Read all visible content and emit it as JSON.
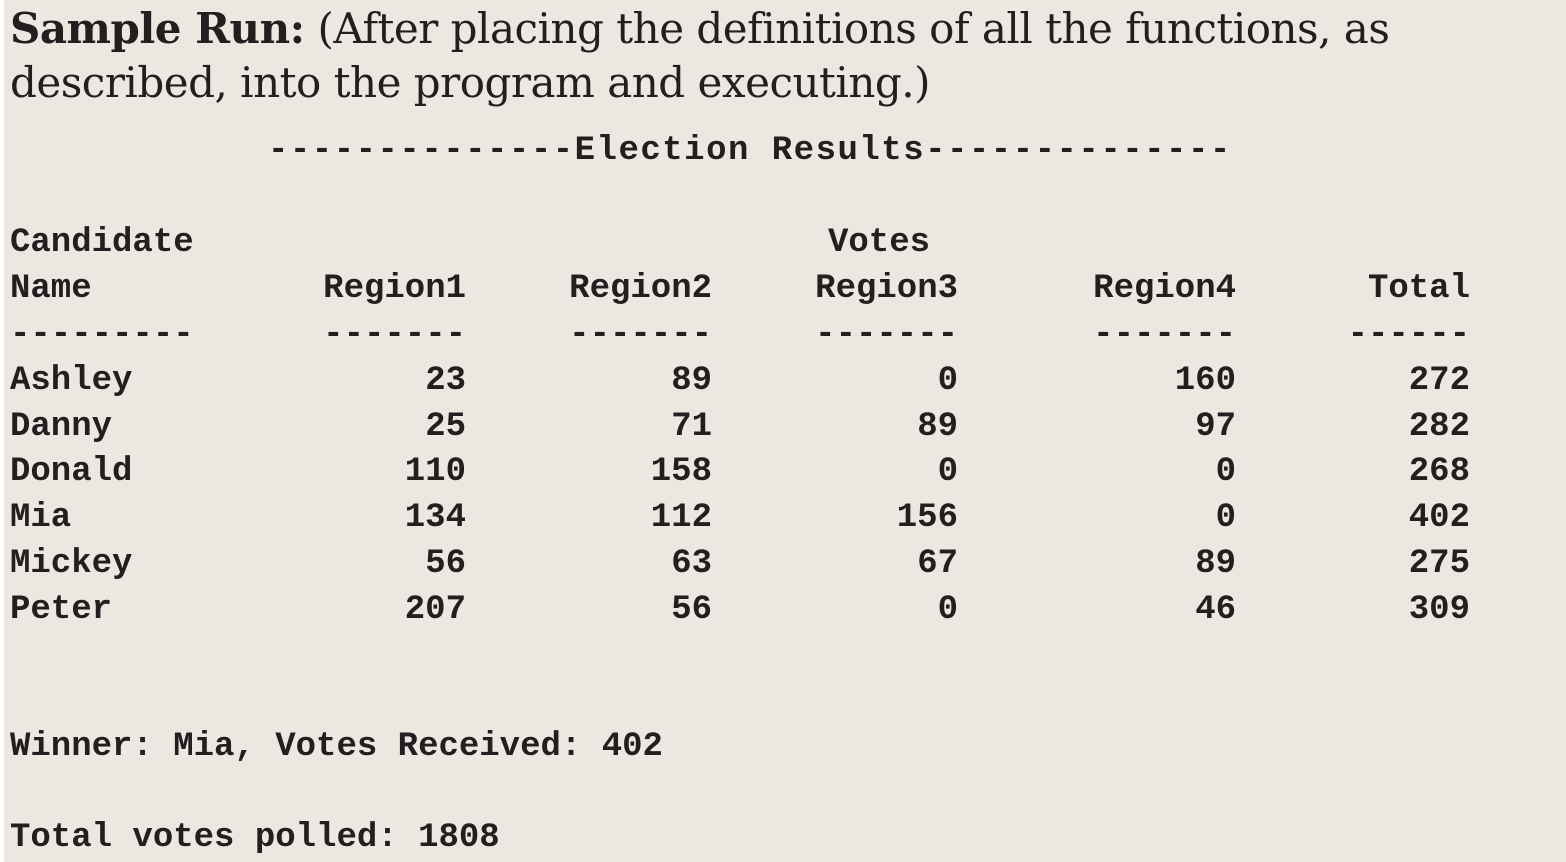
{
  "intro": {
    "lead": "Sample Run:",
    "text": " (After placing the definitions of all the functions, as described, into the program and executing.)"
  },
  "output": {
    "title_line": "--------------Election Results--------------",
    "header_row1_candidate": "Candidate",
    "header_row1_votes": "Votes",
    "headers": [
      "Name",
      "Region1",
      "Region2",
      "Region3",
      "Region4",
      "Total"
    ],
    "dividers": [
      "---------",
      "-------",
      "-------",
      "-------",
      "-------",
      "------"
    ],
    "rows": [
      {
        "name": "Ashley",
        "r1": "23",
        "r2": "89",
        "r3": "0",
        "r4": "160",
        "total": "272"
      },
      {
        "name": "Danny",
        "r1": "25",
        "r2": "71",
        "r3": "89",
        "r4": "97",
        "total": "282"
      },
      {
        "name": "Donald",
        "r1": "110",
        "r2": "158",
        "r3": "0",
        "r4": "0",
        "total": "268"
      },
      {
        "name": "Mia",
        "r1": "134",
        "r2": "112",
        "r3": "156",
        "r4": "0",
        "total": "402"
      },
      {
        "name": "Mickey",
        "r1": "56",
        "r2": "63",
        "r3": "67",
        "r4": "89",
        "total": "275"
      },
      {
        "name": "Peter",
        "r1": "207",
        "r2": "56",
        "r3": "0",
        "r4": "46",
        "total": "309"
      }
    ],
    "winner_line": "Winner: Mia, Votes Received: 402",
    "total_line": "Total votes polled: 1808"
  }
}
